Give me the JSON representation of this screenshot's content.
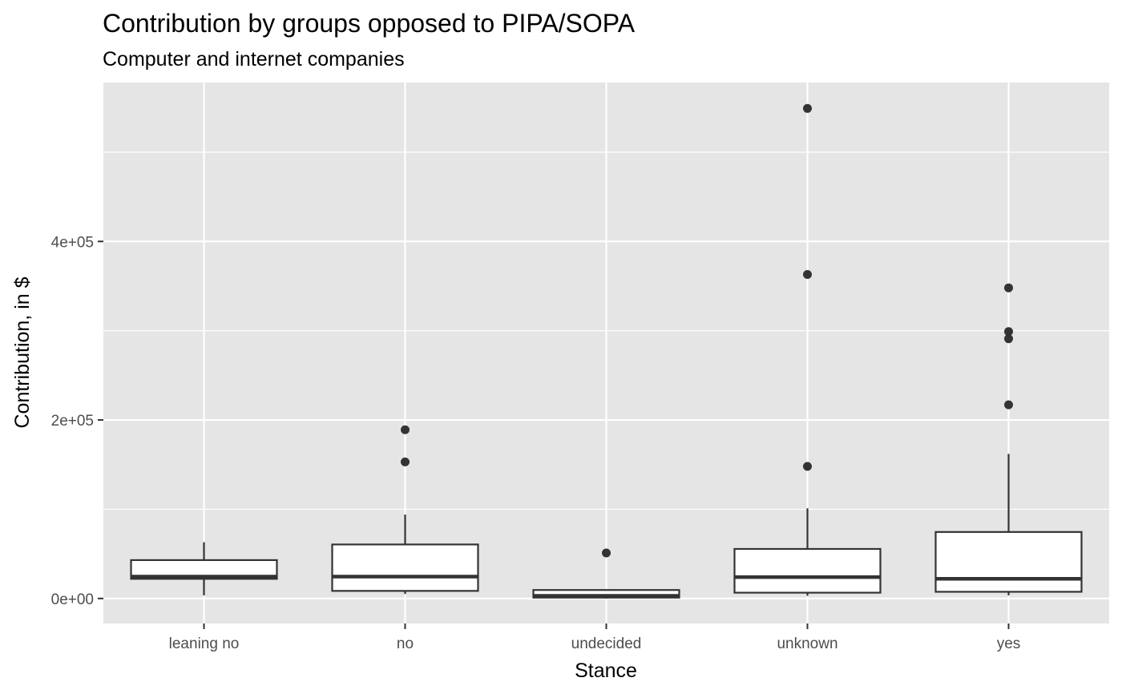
{
  "chart_data": {
    "type": "boxplot",
    "title": "Contribution by groups opposed to PIPA/SOPA",
    "subtitle": "Computer and internet companies",
    "xlabel": "Stance",
    "ylabel": "Contribution, in $",
    "categories": [
      "leaning no",
      "no",
      "undecided",
      "unknown",
      "yes"
    ],
    "ylim": [
      -28000,
      578000
    ],
    "y_ticks": [
      {
        "value": 0,
        "label": "0e+00"
      },
      {
        "value": 200000,
        "label": "2e+05"
      },
      {
        "value": 400000,
        "label": "4e+05"
      }
    ],
    "y_minor_ticks": [
      100000,
      300000,
      500000
    ],
    "grid": true,
    "boxes": [
      {
        "category": "leaning no",
        "whisker_low": 3500,
        "q1": 22000,
        "median": 24500,
        "q3": 43000,
        "whisker_high": 63000,
        "outliers": []
      },
      {
        "category": "no",
        "whisker_low": 5000,
        "q1": 8500,
        "median": 24500,
        "q3": 60500,
        "whisker_high": 94000,
        "outliers": [
          153000,
          189000
        ]
      },
      {
        "category": "undecided",
        "whisker_low": 0,
        "q1": 1000,
        "median": 3000,
        "q3": 9500,
        "whisker_high": 10000,
        "outliers": [
          51000
        ]
      },
      {
        "category": "unknown",
        "whisker_low": 3000,
        "q1": 6500,
        "median": 24000,
        "q3": 55500,
        "whisker_high": 101000,
        "outliers": [
          148000,
          363000,
          549000
        ]
      },
      {
        "category": "yes",
        "whisker_low": 3500,
        "q1": 7500,
        "median": 22000,
        "q3": 74500,
        "whisker_high": 162000,
        "outliers": [
          217000,
          291000,
          299000,
          348000
        ]
      }
    ],
    "colors": {
      "panel": "#e5e5e5",
      "grid": "#ffffff",
      "box_fill": "#ffffff",
      "box_line": "#333333",
      "outlier": "#333333"
    }
  }
}
